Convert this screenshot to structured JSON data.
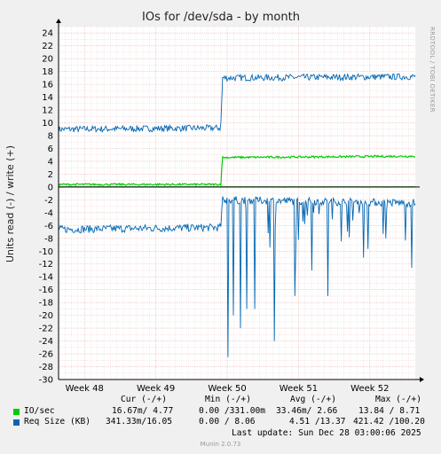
{
  "chart_data": {
    "type": "line",
    "title": "IOs for /dev/sda - by month",
    "ylabel": "Units read (-) / write (+)",
    "side_text": "RRDTOOL / TOBI OETIKER",
    "ylim": [
      -30,
      25
    ],
    "yticks": [
      24,
      22,
      20,
      18,
      16,
      14,
      12,
      10,
      8,
      6,
      4,
      2,
      0,
      -2,
      -4,
      -6,
      -8,
      -10,
      -12,
      -14,
      -16,
      -18,
      -20,
      -22,
      -24,
      -26,
      -28,
      -30
    ],
    "x_range": [
      0,
      55
    ],
    "x_ticks": [
      {
        "x": 4,
        "label": "Week 48"
      },
      {
        "x": 15,
        "label": "Week 49"
      },
      {
        "x": 26,
        "label": "Week 50"
      },
      {
        "x": 37,
        "label": "Week 51"
      },
      {
        "x": 48,
        "label": "Week 52"
      }
    ],
    "series": [
      {
        "name": "IO/sec",
        "color": "#00cc00",
        "polarity": "write",
        "baseline": [
          [
            0,
            0.4
          ],
          [
            25.1,
            0.4
          ],
          [
            25.2,
            4.6
          ],
          [
            55,
            4.8
          ]
        ],
        "noise": 0.15
      },
      {
        "name": "IO/sec",
        "color": "#00cc00",
        "polarity": "read",
        "baseline": [
          [
            0,
            0.02
          ],
          [
            55,
            0.02
          ]
        ],
        "noise": 0.03
      },
      {
        "name": "Req Size (KB)",
        "color": "#0066b3",
        "polarity": "write",
        "baseline": [
          [
            0,
            9.0
          ],
          [
            25.0,
            9.2
          ],
          [
            25.3,
            17
          ],
          [
            55,
            17.2
          ]
        ],
        "noise": 0.5
      },
      {
        "name": "Req Size (KB)",
        "color": "#0066b3",
        "polarity": "read",
        "baseline": [
          [
            0,
            -6.6
          ],
          [
            25.0,
            -6.3
          ],
          [
            25.3,
            -2
          ],
          [
            55,
            -2.5
          ]
        ],
        "noise": 0.6,
        "spikes": [
          [
            26.1,
            -26.5
          ],
          [
            27.0,
            -20
          ],
          [
            28.0,
            -22
          ],
          [
            29.0,
            -19
          ],
          [
            30.2,
            -19
          ],
          [
            33.3,
            -24
          ],
          [
            36.5,
            -17
          ],
          [
            39,
            -13
          ],
          [
            41.5,
            -17
          ],
          [
            44.5,
            -13
          ],
          [
            47,
            -11
          ],
          [
            50.5,
            -8
          ],
          [
            54.5,
            -12.6
          ]
        ]
      }
    ]
  },
  "legend": {
    "headers": [
      "Cur (-/+)",
      "Min (-/+)",
      "Avg (-/+)",
      "Max (-/+)"
    ],
    "rows": [
      {
        "name": "IO/sec",
        "color": "#00cc00",
        "cur": "16.67m/ 4.77",
        "min": "0.00 /331.00m",
        "avg": "33.46m/ 2.66",
        "max": "13.84 / 8.71"
      },
      {
        "name": "Req Size (KB)",
        "color": "#0066b3",
        "cur": "341.33m/16.05",
        "min": "0.00 / 8.06",
        "avg": "4.51 /13.37",
        "max": "421.42 /100.20"
      }
    ],
    "last_update": "Last update: Sun Dec 28 03:00:06 2025"
  },
  "version": "Munin 2.0.73"
}
